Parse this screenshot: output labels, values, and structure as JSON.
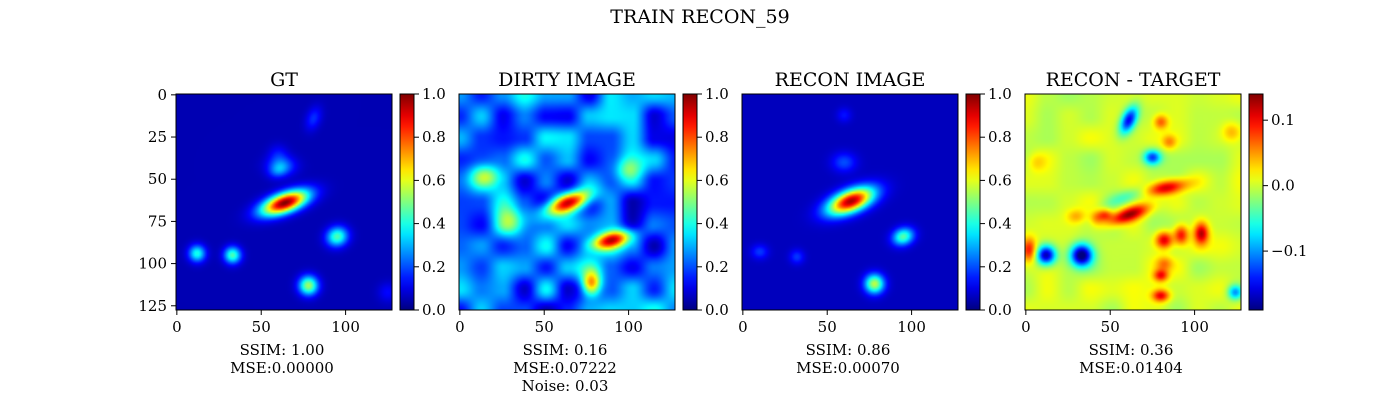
{
  "figure": {
    "suptitle": "TRAIN RECON_59"
  },
  "colors": {
    "colormap": "jet",
    "axis": "#000000",
    "background": "#ffffff"
  },
  "chart_data": [
    {
      "type": "heatmap",
      "title": "GT",
      "image_size": [
        128,
        128
      ],
      "xticks": [
        0,
        50,
        100
      ],
      "yticks": [
        0,
        25,
        50,
        75,
        100,
        125
      ],
      "show_yticks": true,
      "colorbar": {
        "min": 0.0,
        "max": 1.0,
        "ticks": [
          0.0,
          0.2,
          0.4,
          0.6,
          0.8,
          1.0
        ],
        "tick_labels": [
          "0.0",
          "0.2",
          "0.4",
          "0.6",
          "0.8",
          "1.0"
        ]
      },
      "caption": [
        "SSIM: 1.00",
        "MSE:0.00000"
      ],
      "background_value": 0.05,
      "sources": [
        {
          "x": 64,
          "y": 64,
          "sx": 10,
          "sy": 4,
          "angle": -20,
          "amp": 0.95
        },
        {
          "x": 12,
          "y": 94,
          "sx": 3.5,
          "sy": 3.5,
          "angle": 0,
          "amp": 0.35
        },
        {
          "x": 33,
          "y": 95,
          "sx": 3.5,
          "sy": 3.5,
          "angle": 0,
          "amp": 0.4
        },
        {
          "x": 95,
          "y": 84,
          "sx": 4.5,
          "sy": 4,
          "angle": -20,
          "amp": 0.4
        },
        {
          "x": 78,
          "y": 113,
          "sx": 4,
          "sy": 4,
          "angle": 0,
          "amp": 0.48
        },
        {
          "x": 60,
          "y": 45,
          "sx": 4,
          "sy": 3,
          "angle": -20,
          "amp": 0.12
        },
        {
          "x": 62,
          "y": 42,
          "sx": 6,
          "sy": 4,
          "angle": 0,
          "amp": 0.18
        },
        {
          "x": 60,
          "y": 35,
          "sx": 4,
          "sy": 4,
          "angle": 0,
          "amp": 0.08
        },
        {
          "x": 81,
          "y": 14,
          "sx": 3,
          "sy": 5,
          "angle": 20,
          "amp": 0.12
        },
        {
          "x": 125,
          "y": 117,
          "sx": 4,
          "sy": 4,
          "angle": 0,
          "amp": 0.08
        }
      ]
    },
    {
      "type": "heatmap",
      "title": "DIRTY IMAGE",
      "image_size": [
        128,
        128
      ],
      "xticks": [
        0,
        50,
        100
      ],
      "yticks": [
        0,
        25,
        50,
        75,
        100,
        125
      ],
      "show_yticks": false,
      "colorbar": {
        "min": 0.0,
        "max": 1.0,
        "ticks": [
          0.0,
          0.2,
          0.4,
          0.6,
          0.8,
          1.0
        ],
        "tick_labels": [
          "0.0",
          "0.2",
          "0.4",
          "0.6",
          "0.8",
          "1.0"
        ]
      },
      "caption": [
        "SSIM: 0.16",
        "MSE:0.07222",
        "Noise: 0.03"
      ],
      "background_value": 0.22,
      "noise_amplitude": 0.18,
      "sources": [
        {
          "x": 64,
          "y": 64,
          "sx": 10,
          "sy": 4,
          "angle": -20,
          "amp": 0.8
        },
        {
          "x": 90,
          "y": 86,
          "sx": 9,
          "sy": 3.5,
          "angle": -15,
          "amp": 0.6
        },
        {
          "x": 78,
          "y": 112,
          "sx": 4,
          "sy": 5,
          "angle": 0,
          "amp": 0.55
        },
        {
          "x": 15,
          "y": 48,
          "sx": 6,
          "sy": 5,
          "angle": 0,
          "amp": 0.25
        },
        {
          "x": 30,
          "y": 75,
          "sx": 6,
          "sy": 6,
          "angle": 0,
          "amp": 0.25
        },
        {
          "x": 100,
          "y": 45,
          "sx": 6,
          "sy": 5,
          "angle": 0,
          "amp": 0.2
        }
      ]
    },
    {
      "type": "heatmap",
      "title": "RECON IMAGE",
      "image_size": [
        128,
        128
      ],
      "xticks": [
        0,
        50,
        100
      ],
      "yticks": [
        0,
        25,
        50,
        75,
        100,
        125
      ],
      "show_yticks": false,
      "colorbar": {
        "min": 0.0,
        "max": 1.0,
        "ticks": [
          0.0,
          0.2,
          0.4,
          0.6,
          0.8,
          1.0
        ],
        "tick_labels": [
          "0.0",
          "0.2",
          "0.4",
          "0.6",
          "0.8",
          "1.0"
        ]
      },
      "caption": [
        "SSIM: 0.86",
        "MSE:0.00070"
      ],
      "background_value": 0.06,
      "sources": [
        {
          "x": 64,
          "y": 63,
          "sx": 10,
          "sy": 4.5,
          "angle": -22,
          "amp": 0.9
        },
        {
          "x": 95,
          "y": 84,
          "sx": 4.5,
          "sy": 3.5,
          "angle": -20,
          "amp": 0.4
        },
        {
          "x": 78,
          "y": 112,
          "sx": 4,
          "sy": 4,
          "angle": 0,
          "amp": 0.5
        },
        {
          "x": 10,
          "y": 93,
          "sx": 3.5,
          "sy": 3,
          "angle": 0,
          "amp": 0.12
        },
        {
          "x": 32,
          "y": 96,
          "sx": 3,
          "sy": 3,
          "angle": 0,
          "amp": 0.12
        },
        {
          "x": 60,
          "y": 40,
          "sx": 5,
          "sy": 4,
          "angle": 0,
          "amp": 0.14
        },
        {
          "x": 60,
          "y": 12,
          "sx": 3,
          "sy": 3,
          "angle": 0,
          "amp": 0.08
        }
      ]
    },
    {
      "type": "heatmap",
      "title": "RECON - TARGET",
      "image_size": [
        128,
        128
      ],
      "xticks": [
        0,
        50,
        100
      ],
      "yticks": [
        0,
        25,
        50,
        75,
        100,
        125
      ],
      "show_yticks": false,
      "colorbar": {
        "min": -0.19,
        "max": 0.14,
        "ticks": [
          0.1,
          0.0,
          -0.1
        ],
        "tick_labels": [
          "0.1",
          "0.0",
          "−0.1"
        ]
      },
      "caption": [
        "SSIM: 0.36",
        "MSE:0.01404"
      ],
      "background_value": 0.0,
      "noise_amplitude": 0.015,
      "sources": [
        {
          "x": 12,
          "y": 95,
          "sx": 4,
          "sy": 4,
          "angle": 0,
          "amp": -0.18
        },
        {
          "x": 33,
          "y": 95,
          "sx": 4.5,
          "sy": 4.5,
          "angle": 0,
          "amp": -0.2
        },
        {
          "x": 61,
          "y": 71,
          "sx": 9,
          "sy": 3,
          "angle": -20,
          "amp": 0.13
        },
        {
          "x": 83,
          "y": 55,
          "sx": 9,
          "sy": 3,
          "angle": -10,
          "amp": 0.12
        },
        {
          "x": 61,
          "y": 60,
          "sx": 10,
          "sy": 3,
          "angle": -20,
          "amp": -0.05
        },
        {
          "x": 61,
          "y": 15,
          "sx": 3,
          "sy": 6,
          "angle": 25,
          "amp": -0.15
        },
        {
          "x": 75,
          "y": 37,
          "sx": 3.5,
          "sy": 3,
          "angle": 0,
          "amp": -0.12
        },
        {
          "x": 80,
          "y": 16,
          "sx": 3,
          "sy": 3,
          "angle": 0,
          "amp": 0.07
        },
        {
          "x": 104,
          "y": 82,
          "sx": 3,
          "sy": 4.5,
          "angle": 0,
          "amp": 0.12
        },
        {
          "x": 92,
          "y": 83,
          "sx": 3,
          "sy": 4,
          "angle": 0,
          "amp": 0.1
        },
        {
          "x": 82,
          "y": 86,
          "sx": 3.5,
          "sy": 3.5,
          "angle": 0,
          "amp": 0.11
        },
        {
          "x": 82,
          "y": 100,
          "sx": 3.5,
          "sy": 3,
          "angle": 0,
          "amp": 0.05
        },
        {
          "x": 80,
          "y": 107,
          "sx": 3,
          "sy": 2.5,
          "angle": 0,
          "amp": 0.09
        },
        {
          "x": 80,
          "y": 119,
          "sx": 3.5,
          "sy": 2.5,
          "angle": 0,
          "amp": 0.1
        },
        {
          "x": 85,
          "y": 28,
          "sx": 3,
          "sy": 3,
          "angle": 0,
          "amp": 0.05
        },
        {
          "x": 30,
          "y": 72,
          "sx": 4,
          "sy": 3,
          "angle": 0,
          "amp": 0.04
        },
        {
          "x": 2,
          "y": 92,
          "sx": 3,
          "sy": 5,
          "angle": 0,
          "amp": 0.09
        },
        {
          "x": 124,
          "y": 117,
          "sx": 3,
          "sy": 3,
          "angle": 0,
          "amp": -0.1
        },
        {
          "x": 6,
          "y": 40,
          "sx": 4,
          "sy": 4,
          "angle": 0,
          "amp": 0.03
        },
        {
          "x": 122,
          "y": 22,
          "sx": 4,
          "sy": 4,
          "angle": 0,
          "amp": 0.04
        },
        {
          "x": 42,
          "y": 73,
          "sx": 3,
          "sy": 3,
          "angle": 0,
          "amp": 0.05
        },
        {
          "x": 47,
          "y": 71,
          "sx": 3,
          "sy": 2.5,
          "angle": 0,
          "amp": 0.07
        }
      ]
    }
  ]
}
